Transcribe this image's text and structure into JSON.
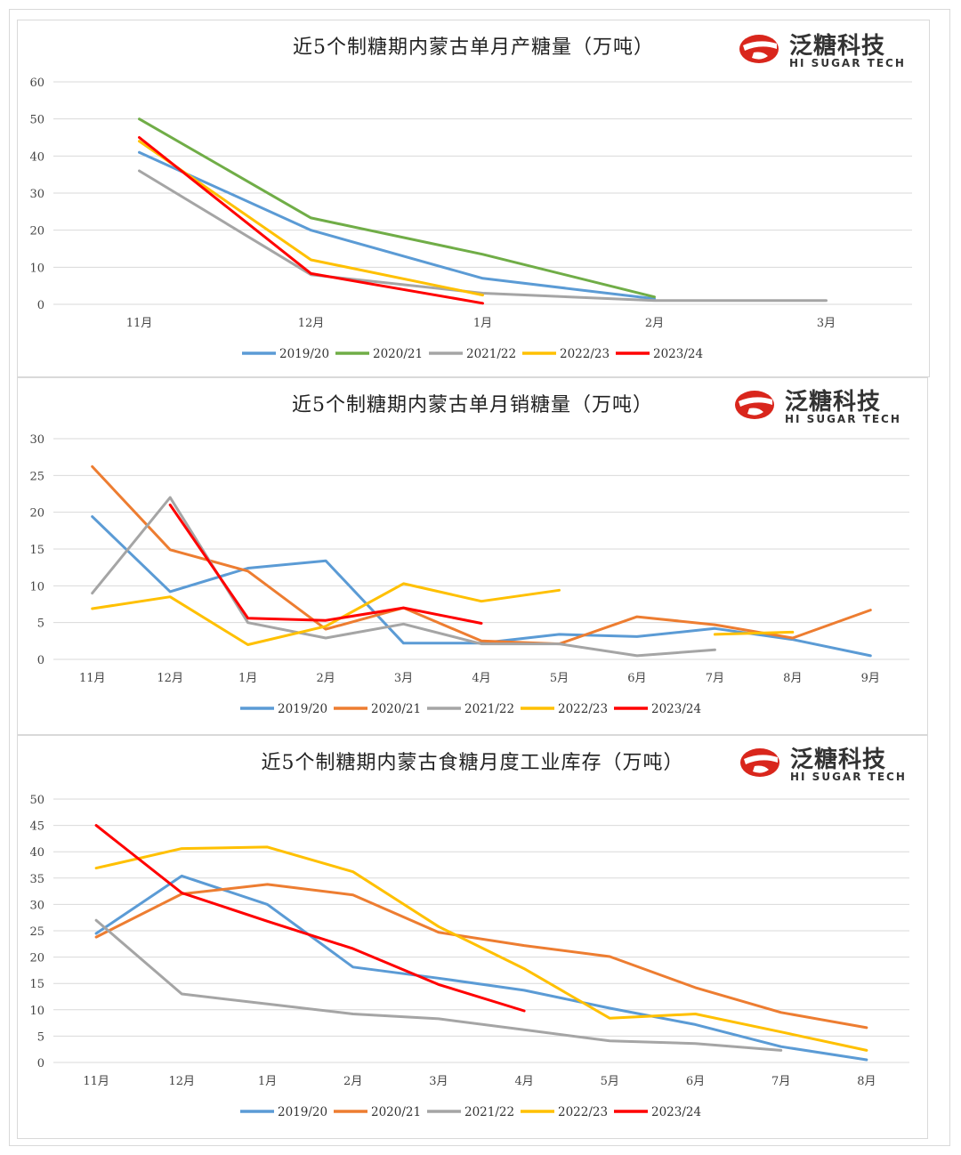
{
  "brand": {
    "name_cn": "泛糖科技",
    "name_en": "HI SUGAR TECH"
  },
  "colors": {
    "2019/20": "#5b9bd5",
    "2020/21_green": "#70ad47",
    "2020/21_orange": "#ed7d31",
    "2021/22": "#a5a5a5",
    "2022/23": "#ffc000",
    "2023/24": "#ff0000"
  },
  "chart_data": [
    {
      "type": "line",
      "title": "近5个制糖期内蒙古单月产糖量（万吨）",
      "categories": [
        "11月",
        "12月",
        "1月",
        "2月",
        "3月"
      ],
      "ylim": [
        0,
        60
      ],
      "yticks": [
        "0",
        "10",
        "20",
        "30",
        "40",
        "50",
        "60"
      ],
      "grid": true,
      "legend": "bottom",
      "series": [
        {
          "name": "2019/20",
          "color": "#5b9bd5",
          "values": [
            41,
            20,
            7,
            1.5,
            null
          ]
        },
        {
          "name": "2020/21",
          "color": "#70ad47",
          "values": [
            50,
            23.3,
            13.5,
            2,
            null
          ]
        },
        {
          "name": "2021/22",
          "color": "#a5a5a5",
          "values": [
            36,
            8,
            3,
            1,
            1
          ]
        },
        {
          "name": "2022/23",
          "color": "#ffc000",
          "values": [
            44,
            12,
            2.5,
            null,
            null
          ]
        },
        {
          "name": "2023/24",
          "color": "#ff0000",
          "values": [
            45,
            8.3,
            0.3,
            null,
            null
          ]
        }
      ]
    },
    {
      "type": "line",
      "title": "近5个制糖期内蒙古单月销糖量（万吨）",
      "categories": [
        "11月",
        "12月",
        "1月",
        "2月",
        "3月",
        "4月",
        "5月",
        "6月",
        "7月",
        "8月",
        "9月"
      ],
      "ylim": [
        0,
        30
      ],
      "yticks": [
        "0",
        "5",
        "10",
        "15",
        "20",
        "25",
        "30"
      ],
      "grid": true,
      "legend": "bottom",
      "series": [
        {
          "name": "2019/20",
          "color": "#5b9bd5",
          "values": [
            19.4,
            9.2,
            12.4,
            13.4,
            2.2,
            2.2,
            3.4,
            3.1,
            4.2,
            2.7,
            0.5
          ]
        },
        {
          "name": "2020/21",
          "color": "#ed7d31",
          "values": [
            26.2,
            14.9,
            12.0,
            4.1,
            7.0,
            2.5,
            2.1,
            5.8,
            4.7,
            2.9,
            6.7
          ]
        },
        {
          "name": "2021/22",
          "color": "#a5a5a5",
          "values": [
            9.0,
            22.0,
            5.0,
            2.9,
            4.8,
            2.1,
            2.1,
            0.5,
            1.3,
            null,
            null
          ]
        },
        {
          "name": "2022/23",
          "color": "#ffc000",
          "values": [
            6.9,
            8.5,
            2.0,
            4.5,
            10.3,
            7.9,
            9.4,
            null,
            3.4,
            3.7,
            null
          ]
        },
        {
          "name": "2023/24",
          "color": "#ff0000",
          "values": [
            null,
            21.0,
            5.6,
            5.3,
            7.0,
            4.9,
            null,
            null,
            null,
            null,
            null
          ]
        }
      ]
    },
    {
      "type": "line",
      "title": "近5个制糖期内蒙古食糖月度工业库存（万吨）",
      "categories": [
        "11月",
        "12月",
        "1月",
        "2月",
        "3月",
        "4月",
        "5月",
        "6月",
        "7月",
        "8月"
      ],
      "ylim": [
        0,
        50
      ],
      "yticks": [
        "0",
        "5",
        "10",
        "15",
        "20",
        "25",
        "30",
        "35",
        "40",
        "45",
        "50"
      ],
      "grid": true,
      "legend": "bottom",
      "series": [
        {
          "name": "2019/20",
          "color": "#5b9bd5",
          "values": [
            24.5,
            35.4,
            30.0,
            18.1,
            16.0,
            13.7,
            10.3,
            7.2,
            3.0,
            0.5
          ]
        },
        {
          "name": "2020/21",
          "color": "#ed7d31",
          "values": [
            23.8,
            32.0,
            33.8,
            31.8,
            24.7,
            22.2,
            20.1,
            14.2,
            9.5,
            6.6
          ]
        },
        {
          "name": "2021/22",
          "color": "#a5a5a5",
          "values": [
            27.0,
            13.0,
            11.1,
            9.2,
            8.3,
            6.2,
            4.1,
            3.6,
            2.3,
            null
          ]
        },
        {
          "name": "2022/23",
          "color": "#ffc000",
          "values": [
            36.9,
            40.6,
            40.9,
            36.2,
            25.8,
            17.8,
            8.4,
            9.2,
            5.8,
            2.3
          ]
        },
        {
          "name": "2023/24",
          "color": "#ff0000",
          "values": [
            45.0,
            32.2,
            26.8,
            21.6,
            14.8,
            9.8,
            null,
            null,
            null,
            null
          ]
        }
      ]
    }
  ]
}
